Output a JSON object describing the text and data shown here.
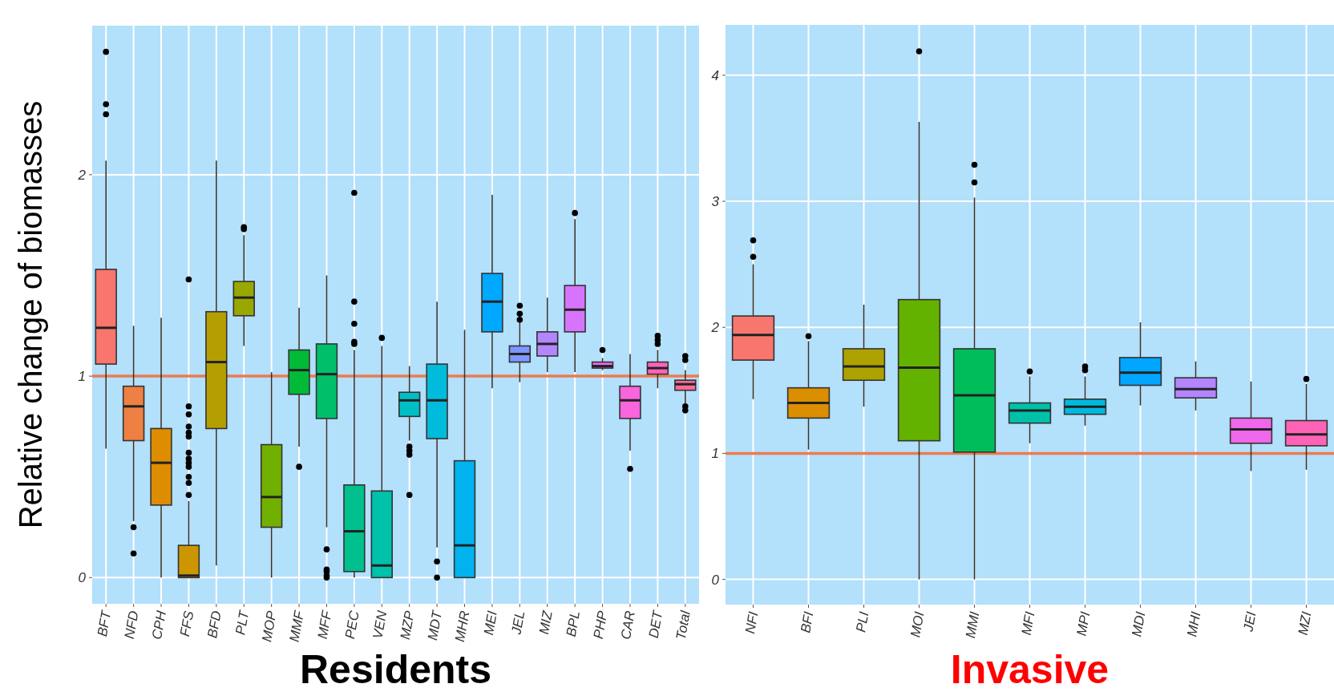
{
  "chart_data": [
    {
      "type": "box",
      "xlabel": "Residents",
      "ylabel": "Relative change of biomasses",
      "ylim": [
        -0.13,
        2.74
      ],
      "yticks": [
        0,
        1,
        2
      ],
      "grid": true,
      "categories": [
        "BFT",
        "NFD",
        "CPH",
        "FFS",
        "BFD",
        "PLT",
        "MOP",
        "MMF",
        "MFF",
        "PEC",
        "VEN",
        "MZP",
        "MDT",
        "MHR",
        "MEI",
        "JEL",
        "MIZ",
        "BPL",
        "PHP",
        "CAR",
        "DET",
        "Total"
      ],
      "colors": [
        "#f8766d",
        "#ee8043",
        "#de8c00",
        "#cc9600",
        "#b59f00",
        "#99a800",
        "#72b000",
        "#00ba38",
        "#00bf6a",
        "#00c08d",
        "#00c1aa",
        "#00bfc4",
        "#00bbdb",
        "#00b3ef",
        "#00a8ff",
        "#7f96ff",
        "#b385ff",
        "#d774fd",
        "#eb69f0",
        "#f865dc",
        "#ff62bc",
        "#ff6a98"
      ],
      "boxes": [
        {
          "low": 0.64,
          "q1": 1.06,
          "median": 1.24,
          "q3": 1.53,
          "high": 2.07,
          "outliers": [
            2.61,
            2.35,
            2.3
          ]
        },
        {
          "low": 0.28,
          "q1": 0.68,
          "median": 0.85,
          "q3": 0.95,
          "high": 1.25,
          "outliers": [
            0.25,
            0.12
          ]
        },
        {
          "low": 0,
          "q1": 0.36,
          "median": 0.57,
          "q3": 0.74,
          "high": 1.29
        },
        {
          "low": 0,
          "q1": 0,
          "median": 0.01,
          "q3": 0.16,
          "high": 0.38,
          "outliers": [
            1.48,
            0.85,
            0.81,
            0.75,
            0.72,
            0.7,
            0.62,
            0.59,
            0.57,
            0.55,
            0.5,
            0.47,
            0.41
          ]
        },
        {
          "low": 0.06,
          "q1": 0.74,
          "median": 1.07,
          "q3": 1.32,
          "high": 2.07
        },
        {
          "low": 1.15,
          "q1": 1.3,
          "median": 1.39,
          "q3": 1.47,
          "high": 1.7,
          "outliers": [
            1.74,
            1.73
          ]
        },
        {
          "low": 0,
          "q1": 0.25,
          "median": 0.4,
          "q3": 0.66,
          "high": 1.02
        },
        {
          "low": 0.65,
          "q1": 0.91,
          "median": 1.03,
          "q3": 1.13,
          "high": 1.34,
          "outliers": [
            0.55
          ]
        },
        {
          "low": 0.25,
          "q1": 0.79,
          "median": 1.01,
          "q3": 1.16,
          "high": 1.5,
          "outliers": [
            0.14,
            0.04,
            0.03,
            0.01,
            0
          ]
        },
        {
          "low": 0,
          "q1": 0.03,
          "median": 0.23,
          "q3": 0.46,
          "high": 1.13,
          "outliers": [
            1.91,
            1.37,
            1.26,
            1.17,
            1.16
          ]
        },
        {
          "low": 0,
          "q1": 0,
          "median": 0.06,
          "q3": 0.43,
          "high": 1.15,
          "outliers": [
            1.19
          ]
        },
        {
          "low": 0.68,
          "q1": 0.8,
          "median": 0.88,
          "q3": 0.92,
          "high": 1.05,
          "outliers": [
            0.65,
            0.63,
            0.61,
            0.41
          ]
        },
        {
          "low": 0.15,
          "q1": 0.69,
          "median": 0.88,
          "q3": 1.06,
          "high": 1.37,
          "outliers": [
            0.08,
            0
          ]
        },
        {
          "low": 0,
          "q1": 0,
          "median": 0.16,
          "q3": 0.58,
          "high": 1.23
        },
        {
          "low": 0.94,
          "q1": 1.22,
          "median": 1.37,
          "q3": 1.51,
          "high": 1.9
        },
        {
          "low": 0.97,
          "q1": 1.07,
          "median": 1.11,
          "q3": 1.15,
          "high": 1.27,
          "outliers": [
            1.35,
            1.31,
            1.28
          ]
        },
        {
          "low": 1.02,
          "q1": 1.1,
          "median": 1.16,
          "q3": 1.22,
          "high": 1.39
        },
        {
          "low": 1.02,
          "q1": 1.22,
          "median": 1.33,
          "q3": 1.45,
          "high": 1.78,
          "outliers": [
            1.81
          ]
        },
        {
          "low": 1.03,
          "q1": 1.04,
          "median": 1.05,
          "q3": 1.07,
          "high": 1.09,
          "outliers": [
            1.13
          ]
        },
        {
          "low": 0.63,
          "q1": 0.79,
          "median": 0.88,
          "q3": 0.95,
          "high": 1.11,
          "outliers": [
            0.54
          ]
        },
        {
          "low": 0.94,
          "q1": 1.01,
          "median": 1.04,
          "q3": 1.07,
          "high": 1.13,
          "outliers": [
            1.2,
            1.18,
            1.16
          ]
        },
        {
          "low": 0.86,
          "q1": 0.93,
          "median": 0.96,
          "q3": 0.98,
          "high": 1.03,
          "outliers": [
            1.1,
            1.08,
            0.85,
            0.83
          ]
        }
      ],
      "ref_lines": [
        {
          "axis": "y",
          "value": 1,
          "color": "#ee7a50"
        }
      ]
    },
    {
      "type": "box",
      "xlabel": "Invasive",
      "ylim": [
        -0.2,
        4.4
      ],
      "yticks": [
        0,
        1,
        2,
        3,
        4
      ],
      "grid": true,
      "categories": [
        "NFI",
        "BFI",
        "PLI",
        "MOI",
        "MMI",
        "MFI",
        "MPI",
        "MDI",
        "MHI",
        "JEI",
        "MZI"
      ],
      "colors": [
        "#f8766d",
        "#db8e00",
        "#aea200",
        "#64b200",
        "#00bd5c",
        "#00c1a7",
        "#00badE",
        "#00a6ff",
        "#b385ff",
        "#ef67eb",
        "#ff63b6"
      ],
      "boxes": [
        {
          "low": 1.43,
          "q1": 1.74,
          "median": 1.94,
          "q3": 2.09,
          "high": 2.5,
          "outliers": [
            2.69,
            2.56
          ]
        },
        {
          "low": 1.03,
          "q1": 1.28,
          "median": 1.4,
          "q3": 1.52,
          "high": 1.89,
          "outliers": [
            1.93
          ]
        },
        {
          "low": 1.37,
          "q1": 1.58,
          "median": 1.69,
          "q3": 1.83,
          "high": 2.18
        },
        {
          "low": 0,
          "q1": 1.1,
          "median": 1.68,
          "q3": 2.22,
          "high": 3.63,
          "outliers": [
            4.19
          ]
        },
        {
          "low": 0,
          "q1": 1.01,
          "median": 1.46,
          "q3": 1.83,
          "high": 3.03,
          "outliers": [
            3.29,
            3.15
          ]
        },
        {
          "low": 1.08,
          "q1": 1.24,
          "median": 1.34,
          "q3": 1.4,
          "high": 1.61,
          "outliers": [
            1.65
          ]
        },
        {
          "low": 1.22,
          "q1": 1.31,
          "median": 1.37,
          "q3": 1.43,
          "high": 1.61,
          "outliers": [
            1.69,
            1.66
          ]
        },
        {
          "low": 1.38,
          "q1": 1.54,
          "median": 1.64,
          "q3": 1.76,
          "high": 2.04
        },
        {
          "low": 1.34,
          "q1": 1.44,
          "median": 1.51,
          "q3": 1.6,
          "high": 1.73
        },
        {
          "low": 0.86,
          "q1": 1.08,
          "median": 1.19,
          "q3": 1.28,
          "high": 1.57
        },
        {
          "low": 0.87,
          "q1": 1.06,
          "median": 1.15,
          "q3": 1.26,
          "high": 1.55,
          "outliers": [
            1.59
          ]
        }
      ],
      "ref_lines": [
        {
          "axis": "y",
          "value": 1,
          "color": "#ee7a50"
        }
      ]
    }
  ]
}
